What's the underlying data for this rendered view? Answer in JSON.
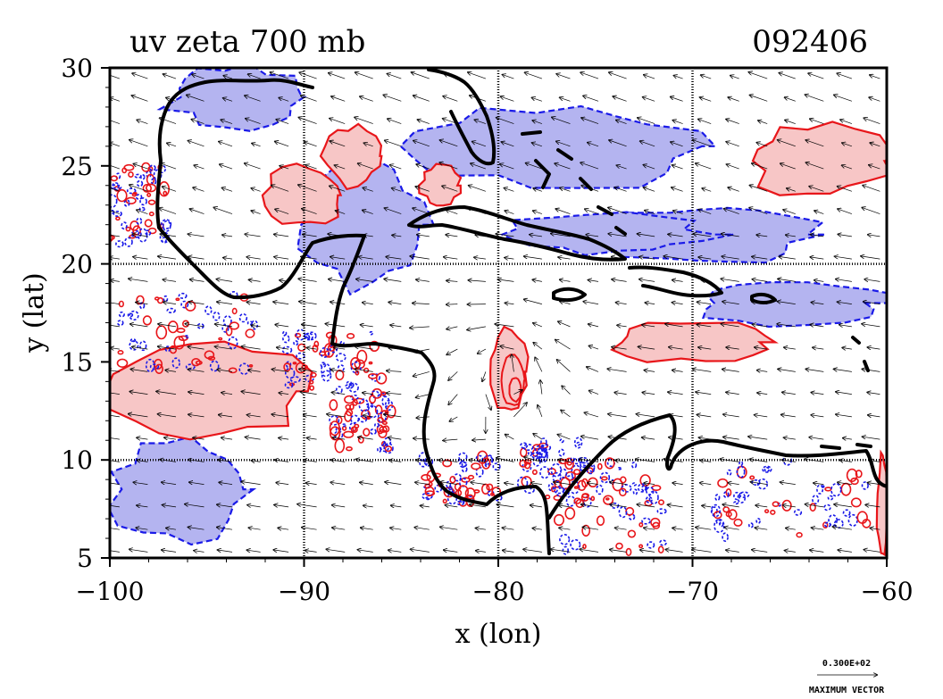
{
  "chart_data": {
    "type": "contour-vector-map",
    "title": "uv zeta 700 mb",
    "date_label": "092406",
    "xlabel": "x (lon)",
    "ylabel": "y (lat)",
    "xlim": [
      -100,
      -60
    ],
    "ylim": [
      5,
      30
    ],
    "xticks": [
      -100,
      -90,
      -80,
      -70,
      -60
    ],
    "yticks": [
      5,
      10,
      15,
      20,
      25,
      30
    ],
    "grid_lines": {
      "lon": [
        -90,
        -80,
        -70
      ],
      "lat": [
        10,
        20
      ]
    },
    "fields": {
      "vector_field": "uv wind",
      "contour_field": "zeta (relative vorticity)",
      "level": "700 mb",
      "positive_color": "#e8161a",
      "positive_fill": "#f7c6c6",
      "negative_color": "#1a1ae8",
      "negative_fill": "#b4b4f0",
      "coastline_color": "#000000"
    },
    "vector_key": {
      "value": "0.300E+02",
      "label": "MAXIMUM VECTOR"
    },
    "features": {
      "positive_zeta_regions": [
        {
          "lon": [
            -80.5,
            -78.5
          ],
          "lat": [
            12.5,
            16.5
          ],
          "note": "closed cyclonic circulation"
        },
        {
          "lon": [
            -100,
            -90
          ],
          "lat": [
            11,
            16
          ]
        },
        {
          "lon": [
            -67,
            -60
          ],
          "lat": [
            23.5,
            27
          ]
        },
        {
          "lon": [
            -84,
            -82
          ],
          "lat": [
            23,
            25
          ]
        },
        {
          "lon": [
            -92,
            -88
          ],
          "lat": [
            22,
            25
          ]
        },
        {
          "lon": [
            -89,
            -86
          ],
          "lat": [
            24,
            27
          ]
        },
        {
          "lon": [
            -74,
            -66
          ],
          "lat": [
            15,
            17
          ]
        },
        {
          "lon": [
            -60.5,
            -60
          ],
          "lat": [
            5,
            10
          ]
        }
      ],
      "negative_zeta_regions": [
        {
          "lon": [
            -84,
            -70
          ],
          "lat": [
            24,
            28
          ]
        },
        {
          "lon": [
            -74,
            -64
          ],
          "lat": [
            20,
            23
          ]
        },
        {
          "lon": [
            -100,
            -93
          ],
          "lat": [
            6,
            11
          ]
        },
        {
          "lon": [
            -80,
            -69
          ],
          "lat": [
            20.5,
            22.5
          ]
        },
        {
          "lon": [
            -90,
            -84
          ],
          "lat": [
            19,
            25
          ]
        },
        {
          "lon": [
            -97,
            -90
          ],
          "lat": [
            27,
            30
          ]
        },
        {
          "lon": [
            -70,
            -60
          ],
          "lat": [
            17,
            19
          ]
        }
      ]
    }
  }
}
